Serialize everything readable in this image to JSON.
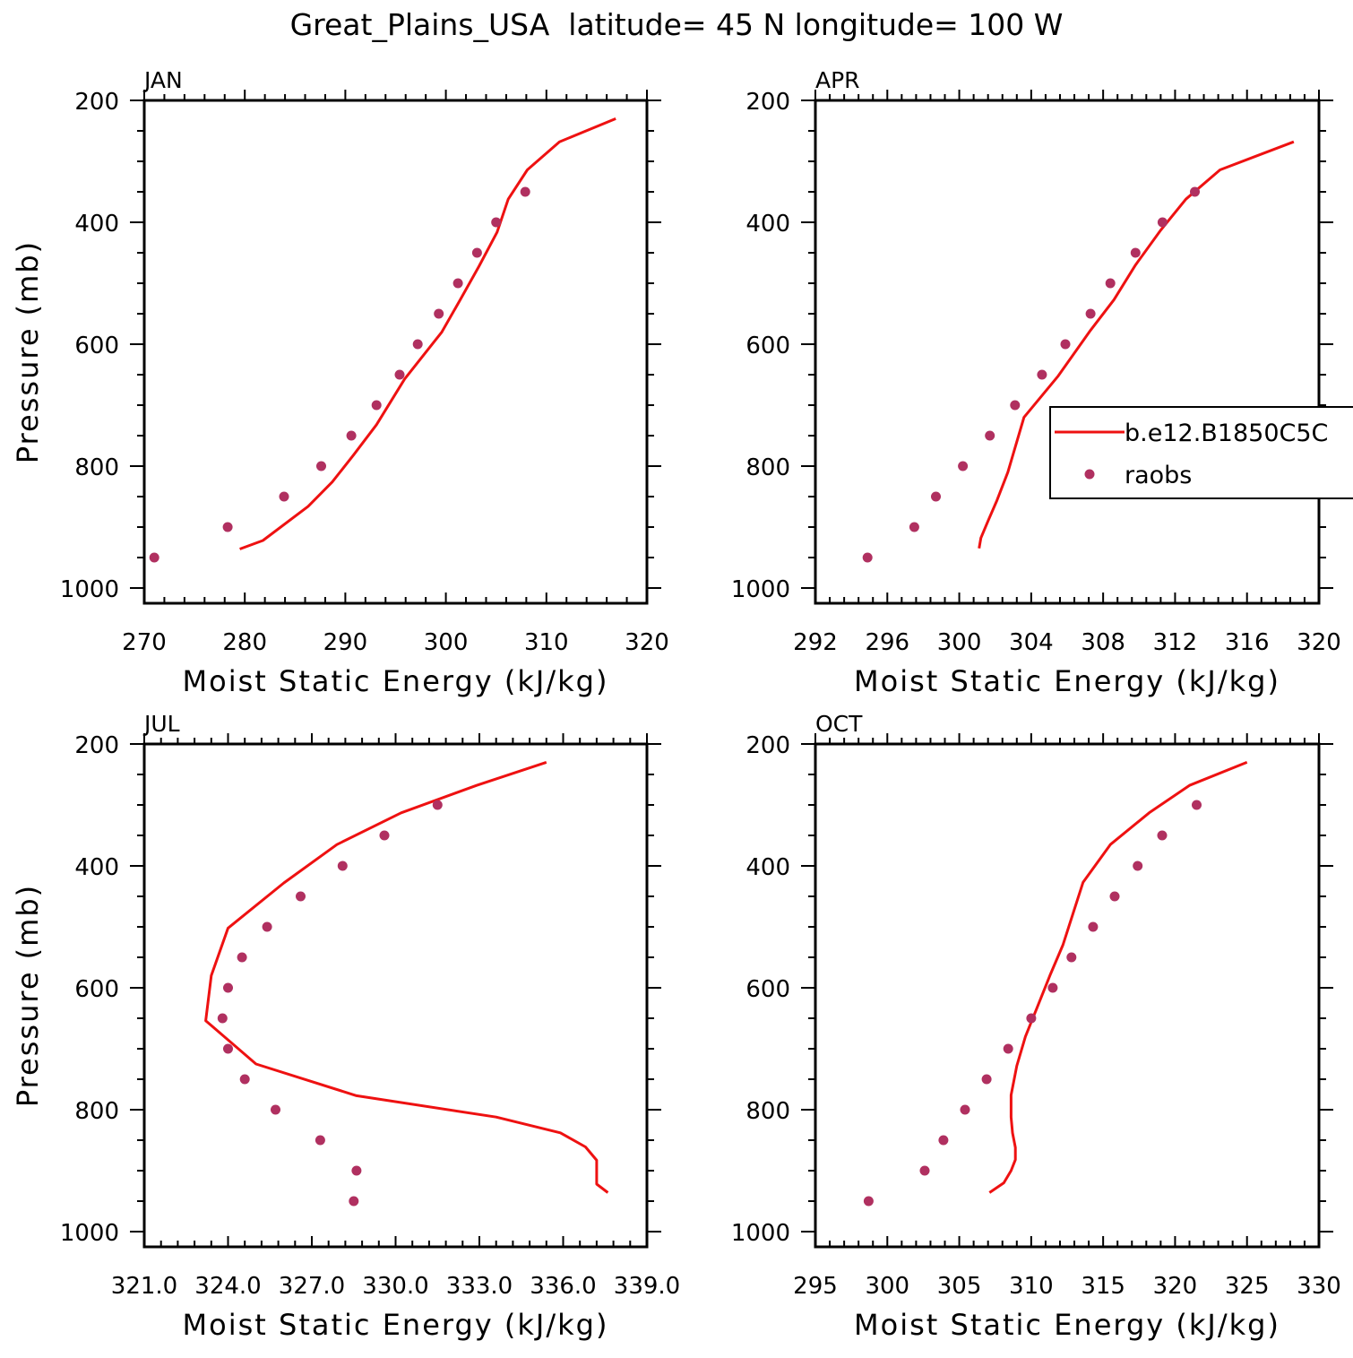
{
  "title": "Great_Plains_USA  latitude= 45 N longitude= 100 W",
  "colors": {
    "model": "#ee1111",
    "obs": "#b03060",
    "axes": "#000000"
  },
  "legend": {
    "model_label": "b.e12.B1850C5C",
    "obs_label": "raobs",
    "panel": "APR"
  },
  "chart_data": [
    {
      "type": "line",
      "panel": "JAN",
      "title": "JAN",
      "xlabel": "Moist Static Energy (kJ/kg)",
      "ylabel": "Pressure (mb)",
      "xlim": [
        270,
        320
      ],
      "ylim": [
        1025,
        200
      ],
      "xticks": [
        270,
        280,
        290,
        300,
        310,
        320
      ],
      "xtick_labels": [
        "270",
        "280",
        "290",
        "300",
        "310",
        "320"
      ],
      "yticks": [
        200,
        400,
        600,
        800,
        1000
      ],
      "ytick_labels": [
        "200",
        "400",
        "600",
        "800",
        "1000"
      ],
      "series": [
        {
          "name": "b.e12.B1850C5C",
          "kind": "line",
          "x": [
            279.5,
            281.8,
            286.3,
            288.7,
            290.8,
            293.1,
            295.9,
            299.6,
            301.4,
            303.3,
            305.1,
            306.2,
            308.1,
            311.3,
            316.9
          ],
          "y": [
            936,
            922,
            866,
            826,
            782,
            732,
            657,
            580,
            528,
            472,
            416,
            362,
            314,
            268,
            230
          ]
        },
        {
          "name": "raobs",
          "kind": "scatter",
          "x": [
            271.0,
            278.3,
            283.9,
            287.6,
            290.6,
            293.1,
            295.4,
            297.2,
            299.3,
            301.2,
            303.1,
            305.0,
            307.9
          ],
          "y": [
            950,
            900,
            850,
            800,
            750,
            700,
            650,
            600,
            550,
            500,
            450,
            400,
            350
          ]
        }
      ]
    },
    {
      "type": "line",
      "panel": "APR",
      "title": "APR",
      "xlabel": "Moist Static Energy (kJ/kg)",
      "ylabel": "",
      "xlim": [
        292,
        320
      ],
      "ylim": [
        1025,
        200
      ],
      "xticks": [
        292,
        296,
        300,
        304,
        308,
        312,
        316,
        320
      ],
      "xtick_labels": [
        "292",
        "296",
        "300",
        "304",
        "308",
        "312",
        "316",
        "320"
      ],
      "yticks": [
        200,
        400,
        600,
        800,
        1000
      ],
      "ytick_labels": [
        "200",
        "400",
        "600",
        "800",
        "1000"
      ],
      "series": [
        {
          "name": "b.e12.B1850C5C",
          "kind": "line",
          "x": [
            301.1,
            301.2,
            301.6,
            302.1,
            302.7,
            303.6,
            305.5,
            307.3,
            308.6,
            309.8,
            311.2,
            312.6,
            314.5,
            318.6
          ],
          "y": [
            935,
            918,
            890,
            856,
            810,
            720,
            652,
            577,
            527,
            470,
            413,
            362,
            314,
            268
          ]
        },
        {
          "name": "raobs",
          "kind": "scatter",
          "x": [
            294.9,
            297.5,
            298.7,
            300.2,
            301.7,
            303.1,
            304.6,
            305.9,
            307.3,
            308.4,
            309.8,
            311.3,
            313.1
          ],
          "y": [
            950,
            900,
            850,
            800,
            750,
            700,
            650,
            600,
            550,
            500,
            450,
            400,
            350
          ]
        }
      ]
    },
    {
      "type": "line",
      "panel": "JUL",
      "title": "JUL",
      "xlabel": "Moist Static Energy (kJ/kg)",
      "ylabel": "Pressure (mb)",
      "xlim": [
        321.0,
        339.0
      ],
      "ylim": [
        1025,
        200
      ],
      "xticks": [
        321.0,
        324.0,
        327.0,
        330.0,
        333.0,
        336.0,
        339.0
      ],
      "xtick_labels": [
        "321.0",
        "324.0",
        "327.0",
        "330.0",
        "333.0",
        "336.0",
        "339.0"
      ],
      "yticks": [
        200,
        400,
        600,
        800,
        1000
      ],
      "ytick_labels": [
        "200",
        "400",
        "600",
        "800",
        "1000"
      ],
      "series": [
        {
          "name": "b.e12.B1850C5C",
          "kind": "line",
          "x": [
            337.6,
            337.2,
            337.2,
            336.8,
            335.9,
            333.6,
            328.6,
            325.0,
            323.2,
            323.4,
            324.0,
            326.0,
            327.9,
            330.2,
            332.9,
            335.4
          ],
          "y": [
            936,
            922,
            883,
            861,
            838,
            812,
            777,
            725,
            654,
            580,
            502,
            428,
            365,
            313,
            268,
            230
          ]
        },
        {
          "name": "raobs",
          "kind": "scatter",
          "x": [
            328.5,
            328.6,
            327.3,
            325.7,
            324.6,
            324.0,
            323.8,
            324.0,
            324.5,
            325.4,
            326.6,
            328.1,
            329.6,
            331.5
          ],
          "y": [
            950,
            900,
            850,
            800,
            750,
            700,
            650,
            600,
            550,
            500,
            450,
            400,
            350,
            300
          ]
        }
      ]
    },
    {
      "type": "line",
      "panel": "OCT",
      "title": "OCT",
      "xlabel": "Moist Static Energy (kJ/kg)",
      "ylabel": "",
      "xlim": [
        295,
        330
      ],
      "ylim": [
        1025,
        200
      ],
      "xticks": [
        295,
        300,
        305,
        310,
        315,
        320,
        325,
        330
      ],
      "xtick_labels": [
        "295",
        "300",
        "305",
        "310",
        "315",
        "320",
        "325",
        "330"
      ],
      "yticks": [
        200,
        400,
        600,
        800,
        1000
      ],
      "ytick_labels": [
        "200",
        "400",
        "600",
        "800",
        "1000"
      ],
      "series": [
        {
          "name": "b.e12.B1850C5C",
          "kind": "line",
          "x": [
            307.1,
            308.1,
            308.6,
            308.9,
            308.9,
            308.7,
            308.6,
            308.6,
            309.0,
            309.6,
            310.4,
            311.3,
            312.2,
            313.6,
            315.5,
            318.2,
            321.0,
            325.0
          ],
          "y": [
            936,
            920,
            900,
            882,
            862,
            838,
            812,
            776,
            728,
            680,
            633,
            580,
            530,
            427,
            365,
            313,
            268,
            230
          ]
        },
        {
          "name": "raobs",
          "kind": "scatter",
          "x": [
            298.7,
            302.6,
            303.9,
            305.4,
            306.9,
            308.4,
            310.0,
            311.5,
            312.8,
            314.3,
            315.8,
            317.4,
            319.1,
            321.5
          ],
          "y": [
            950,
            900,
            850,
            800,
            750,
            700,
            650,
            600,
            550,
            500,
            450,
            400,
            350,
            300
          ]
        }
      ]
    }
  ]
}
